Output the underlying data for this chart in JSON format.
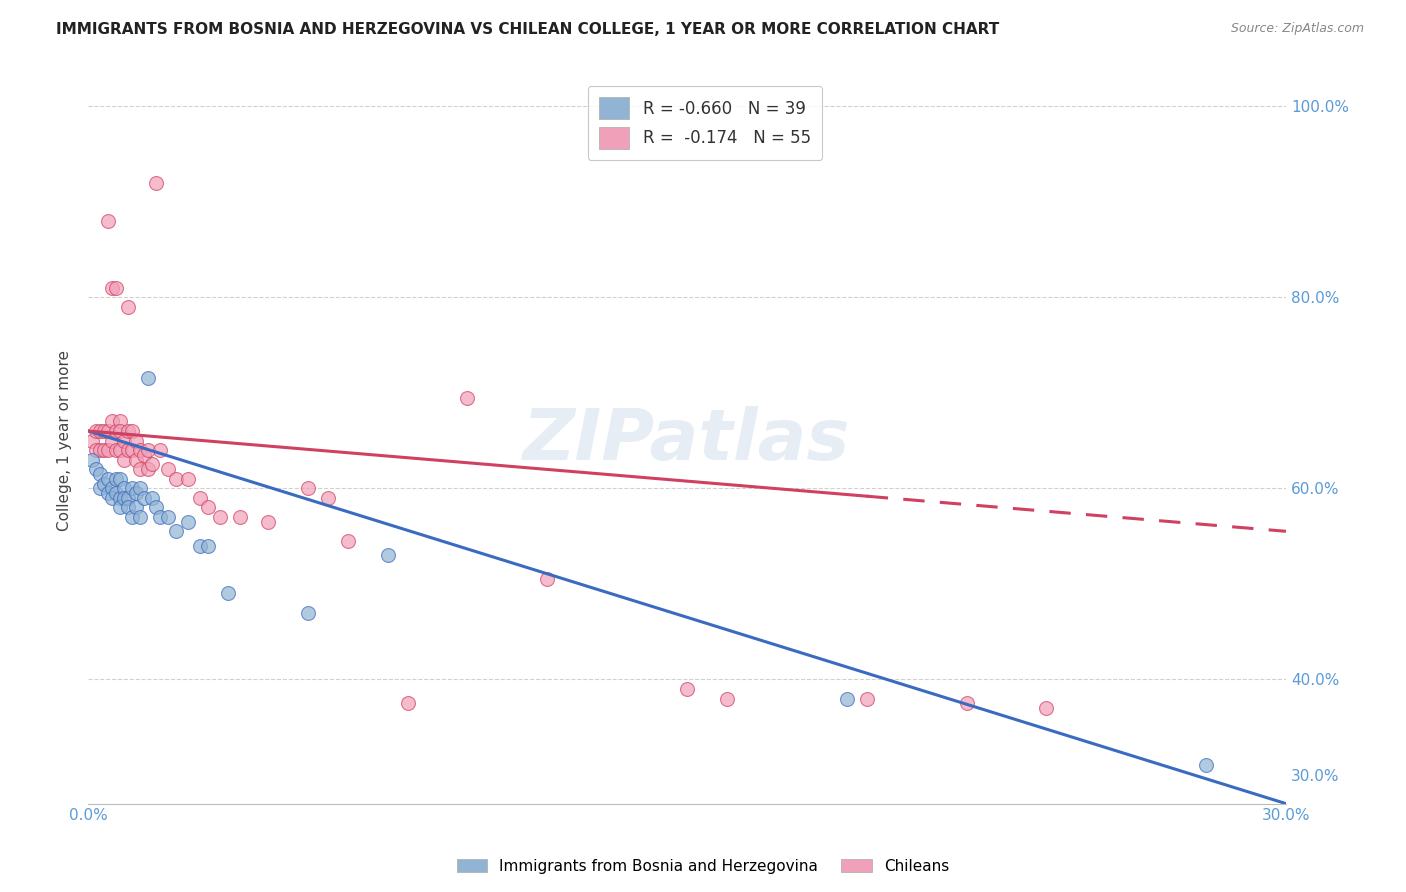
{
  "title": "IMMIGRANTS FROM BOSNIA AND HERZEGOVINA VS CHILEAN COLLEGE, 1 YEAR OR MORE CORRELATION CHART",
  "source": "Source: ZipAtlas.com",
  "ylabel": "College, 1 year or more",
  "xlim": [
    0.0,
    0.3
  ],
  "ylim": [
    0.27,
    1.03
  ],
  "xticks": [
    0.0,
    0.05,
    0.1,
    0.15,
    0.2,
    0.25,
    0.3
  ],
  "xtick_labels": [
    "0.0%",
    "",
    "",
    "",
    "",
    "",
    "30.0%"
  ],
  "yticks": [
    0.4,
    0.6,
    0.8,
    1.0
  ],
  "right_ytick_positions": [
    1.0,
    0.8,
    0.6,
    0.4,
    0.3
  ],
  "right_ytick_labels": [
    "100.0%",
    "80.0%",
    "60.0%",
    "40.0%",
    "30.0%"
  ],
  "blue_scatter_x": [
    0.001,
    0.002,
    0.003,
    0.003,
    0.004,
    0.005,
    0.005,
    0.006,
    0.006,
    0.007,
    0.007,
    0.008,
    0.008,
    0.008,
    0.009,
    0.009,
    0.01,
    0.01,
    0.011,
    0.011,
    0.012,
    0.012,
    0.013,
    0.013,
    0.014,
    0.015,
    0.016,
    0.017,
    0.018,
    0.02,
    0.022,
    0.025,
    0.028,
    0.03,
    0.035,
    0.055,
    0.075,
    0.19,
    0.28
  ],
  "blue_scatter_y": [
    0.63,
    0.62,
    0.615,
    0.6,
    0.605,
    0.61,
    0.595,
    0.6,
    0.59,
    0.61,
    0.595,
    0.59,
    0.61,
    0.58,
    0.6,
    0.59,
    0.59,
    0.58,
    0.6,
    0.57,
    0.595,
    0.58,
    0.6,
    0.57,
    0.59,
    0.715,
    0.59,
    0.58,
    0.57,
    0.57,
    0.555,
    0.565,
    0.54,
    0.54,
    0.49,
    0.47,
    0.53,
    0.38,
    0.31
  ],
  "pink_scatter_x": [
    0.001,
    0.002,
    0.002,
    0.003,
    0.003,
    0.004,
    0.004,
    0.005,
    0.005,
    0.006,
    0.006,
    0.007,
    0.007,
    0.008,
    0.008,
    0.008,
    0.009,
    0.009,
    0.01,
    0.01,
    0.011,
    0.011,
    0.012,
    0.012,
    0.013,
    0.013,
    0.014,
    0.015,
    0.015,
    0.016,
    0.017,
    0.018,
    0.02,
    0.022,
    0.025,
    0.028,
    0.03,
    0.033,
    0.038,
    0.045,
    0.055,
    0.06,
    0.065,
    0.08,
    0.095,
    0.115,
    0.15,
    0.16,
    0.195,
    0.22,
    0.24,
    0.005,
    0.006,
    0.007,
    0.01
  ],
  "pink_scatter_y": [
    0.65,
    0.66,
    0.64,
    0.66,
    0.64,
    0.66,
    0.64,
    0.66,
    0.64,
    0.67,
    0.65,
    0.66,
    0.64,
    0.67,
    0.66,
    0.64,
    0.65,
    0.63,
    0.66,
    0.64,
    0.66,
    0.64,
    0.65,
    0.63,
    0.64,
    0.62,
    0.635,
    0.64,
    0.62,
    0.625,
    0.92,
    0.64,
    0.62,
    0.61,
    0.61,
    0.59,
    0.58,
    0.57,
    0.57,
    0.565,
    0.6,
    0.59,
    0.545,
    0.375,
    0.695,
    0.505,
    0.39,
    0.38,
    0.38,
    0.375,
    0.37,
    0.88,
    0.81,
    0.81,
    0.79
  ],
  "blue_line_x": [
    0.0,
    0.3
  ],
  "blue_line_y": [
    0.66,
    0.27
  ],
  "pink_line_x": [
    0.0,
    0.3
  ],
  "pink_line_y": [
    0.66,
    0.555
  ],
  "pink_line_dashed_start": 0.195,
  "scatter_size": 100,
  "blue_color": "#92b4d4",
  "pink_color": "#f0a0b8",
  "blue_line_color": "#3a6bc0",
  "pink_line_color": "#d04060",
  "watermark": "ZIPatlas",
  "grid_color": "#cccccc",
  "title_fontsize": 11,
  "axis_label_color": "#5b9bd5"
}
